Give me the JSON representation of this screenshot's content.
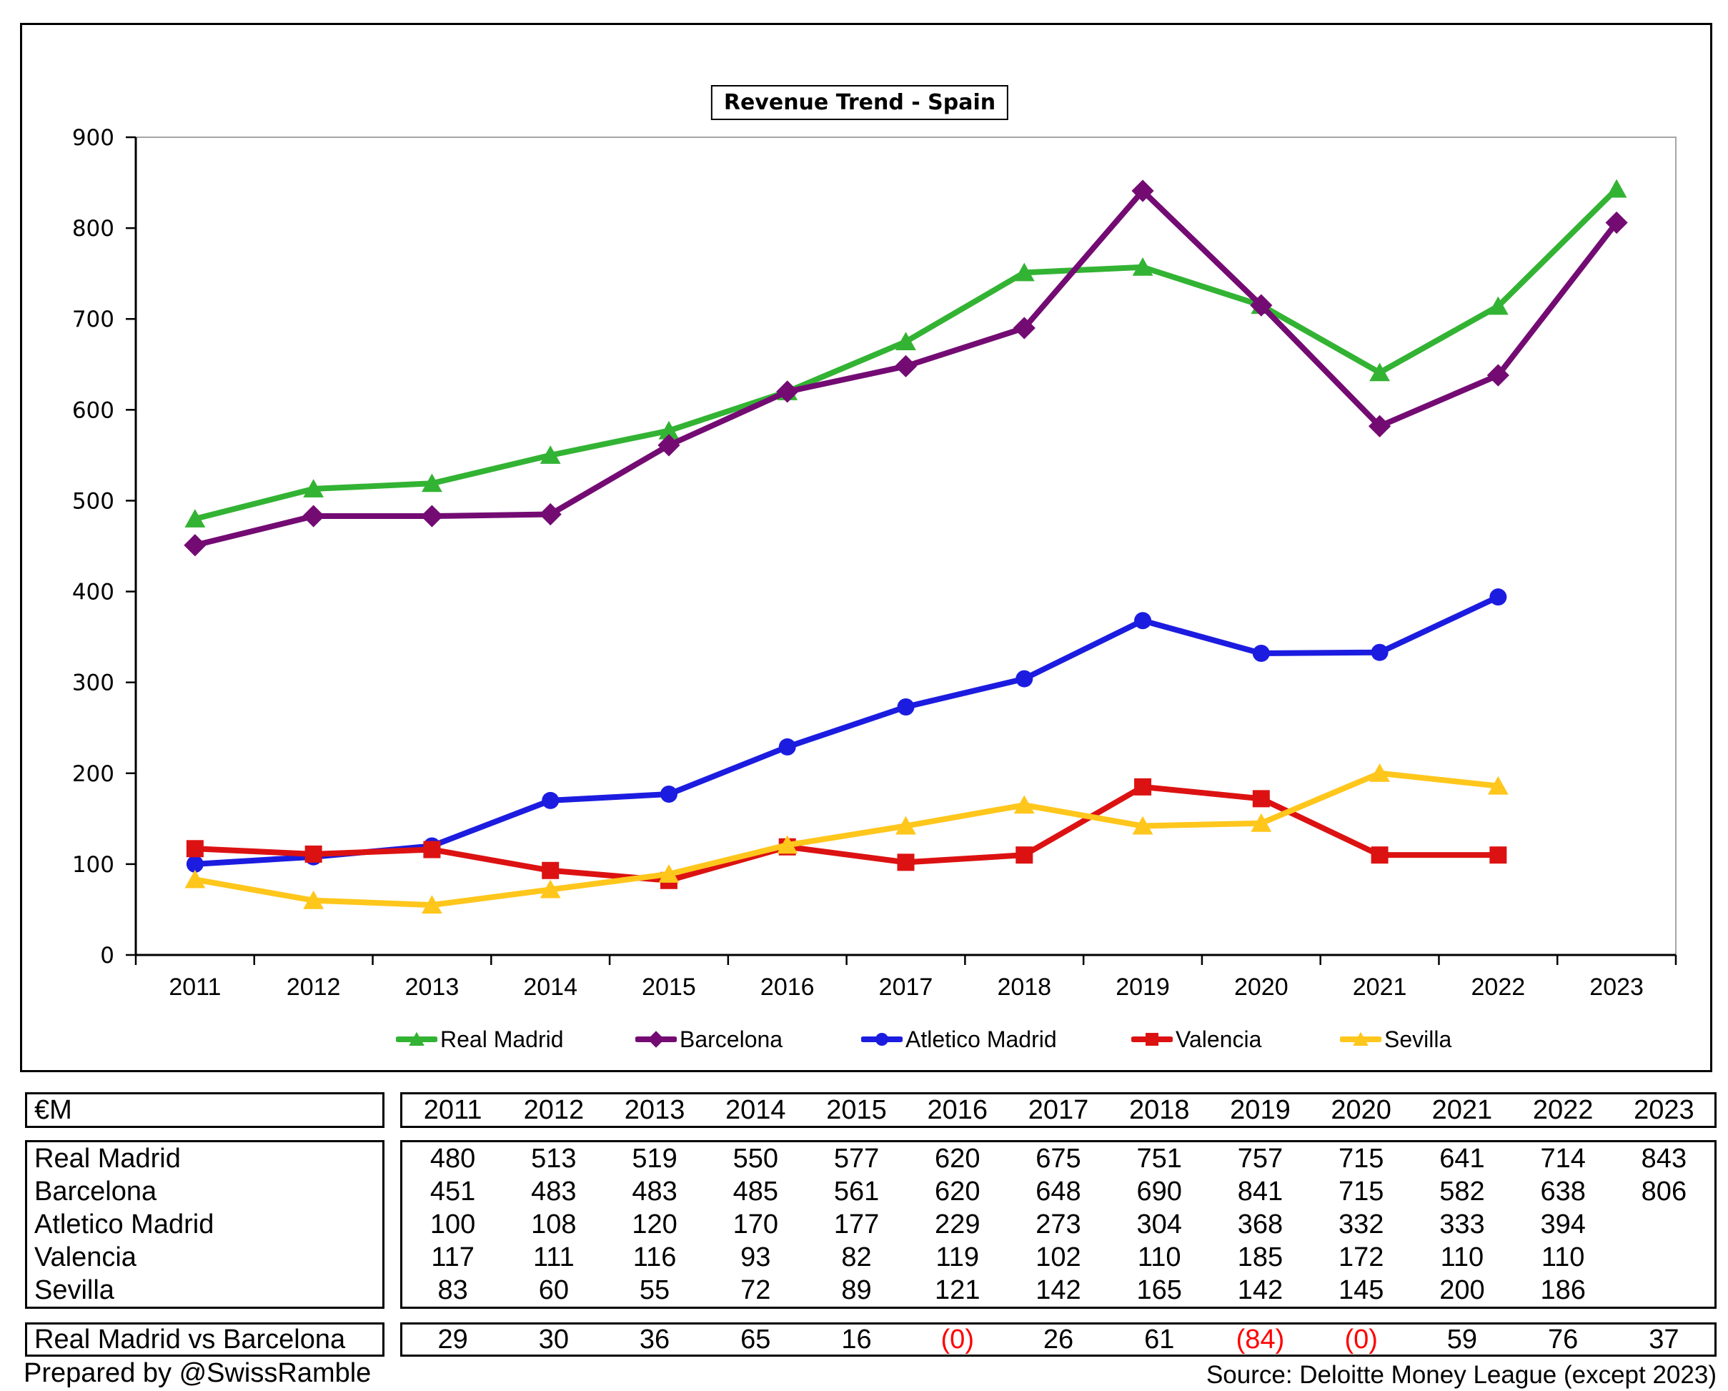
{
  "chart_data": {
    "type": "line",
    "title": "Revenue Trend - Spain",
    "categories": [
      "2011",
      "2012",
      "2013",
      "2014",
      "2015",
      "2016",
      "2017",
      "2018",
      "2019",
      "2020",
      "2021",
      "2022",
      "2023"
    ],
    "xlabel": "",
    "ylabel": "",
    "ylim": [
      0,
      900
    ],
    "y_ticks": [
      0,
      100,
      200,
      300,
      400,
      500,
      600,
      700,
      800,
      900
    ],
    "grid": "none",
    "legend_position": "bottom",
    "series": [
      {
        "name": "Real Madrid",
        "color": "#33B333",
        "marker": "triangle",
        "values": [
          480,
          513,
          519,
          550,
          577,
          620,
          675,
          751,
          757,
          715,
          641,
          714,
          843
        ]
      },
      {
        "name": "Barcelona",
        "color": "#730B73",
        "marker": "diamond",
        "values": [
          451,
          483,
          483,
          485,
          561,
          620,
          648,
          690,
          841,
          715,
          582,
          638,
          806
        ]
      },
      {
        "name": "Atletico Madrid",
        "color": "#1C1CE0",
        "marker": "circle",
        "values": [
          100,
          108,
          120,
          170,
          177,
          229,
          273,
          304,
          368,
          332,
          333,
          394
        ]
      },
      {
        "name": "Valencia",
        "color": "#DC1212",
        "marker": "square",
        "values": [
          117,
          111,
          116,
          93,
          82,
          119,
          102,
          110,
          185,
          172,
          110,
          110
        ]
      },
      {
        "name": "Sevilla",
        "color": "#FFC61C",
        "marker": "triangle",
        "values": [
          83,
          60,
          55,
          72,
          89,
          121,
          142,
          165,
          142,
          145,
          200,
          186
        ]
      }
    ]
  },
  "table": {
    "unit_label": "€M",
    "years": [
      "2011",
      "2012",
      "2013",
      "2014",
      "2015",
      "2016",
      "2017",
      "2018",
      "2019",
      "2020",
      "2021",
      "2022",
      "2023"
    ],
    "rows": [
      {
        "label": "Real Madrid",
        "values": [
          "480",
          "513",
          "519",
          "550",
          "577",
          "620",
          "675",
          "751",
          "757",
          "715",
          "641",
          "714",
          "843"
        ]
      },
      {
        "label": "Barcelona",
        "values": [
          "451",
          "483",
          "483",
          "485",
          "561",
          "620",
          "648",
          "690",
          "841",
          "715",
          "582",
          "638",
          "806"
        ]
      },
      {
        "label": "Atletico Madrid",
        "values": [
          "100",
          "108",
          "120",
          "170",
          "177",
          "229",
          "273",
          "304",
          "368",
          "332",
          "333",
          "394",
          ""
        ]
      },
      {
        "label": "Valencia",
        "values": [
          "117",
          "111",
          "116",
          "93",
          "82",
          "119",
          "102",
          "110",
          "185",
          "172",
          "110",
          "110",
          ""
        ]
      },
      {
        "label": "Sevilla",
        "values": [
          "83",
          "60",
          "55",
          "72",
          "89",
          "121",
          "142",
          "165",
          "142",
          "145",
          "200",
          "186",
          ""
        ]
      }
    ],
    "comparison": {
      "label": "Real Madrid vs Barcelona",
      "cells": [
        {
          "text": "29",
          "negative": false
        },
        {
          "text": "30",
          "negative": false
        },
        {
          "text": "36",
          "negative": false
        },
        {
          "text": "65",
          "negative": false
        },
        {
          "text": "16",
          "negative": false
        },
        {
          "text": "(0)",
          "negative": true
        },
        {
          "text": "26",
          "negative": false
        },
        {
          "text": "61",
          "negative": false
        },
        {
          "text": "(84)",
          "negative": true
        },
        {
          "text": "(0)",
          "negative": true
        },
        {
          "text": "59",
          "negative": false
        },
        {
          "text": "76",
          "negative": false
        },
        {
          "text": "37",
          "negative": false
        }
      ]
    },
    "negative_color": "#FF0000"
  },
  "footer": {
    "prepared_by": "Prepared by @SwissRamble",
    "source": "Source: Deloitte Money League (except 2023)"
  }
}
